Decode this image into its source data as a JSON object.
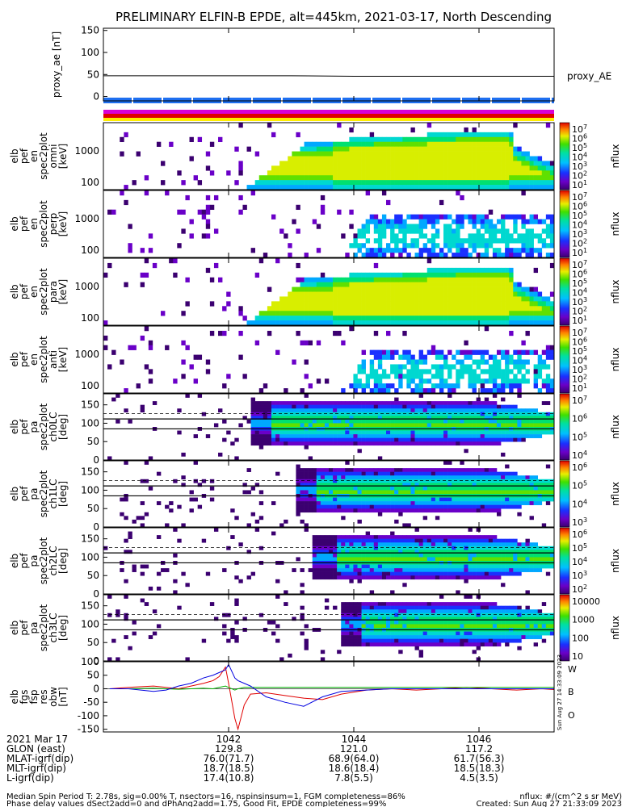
{
  "title": "PRELIMINARY ELFIN-B EPDE, alt=445km, 2021-03-17, North Descending",
  "colors": {
    "magenta": "#d800d8",
    "red": "#e00000",
    "yellow": "#ffee00",
    "blue_bar": "#1e6ff0",
    "fgs_x": "#e00000",
    "fgs_y": "#00b000",
    "fgs_z": "#0000e0"
  },
  "chart_data": [
    {
      "id": "proxy_ae",
      "type": "line",
      "ylabel": "proxy_ae [nT]",
      "ylim": [
        -10,
        155
      ],
      "yticks": [
        "150",
        "100",
        "50",
        "0"
      ],
      "legend": "proxy_AE",
      "x": [
        1040.0,
        1042.0,
        1043.0,
        1044.0,
        1045.0,
        1046.0,
        1047.2
      ],
      "values": [
        47,
        47,
        47,
        46,
        46,
        46,
        46
      ]
    },
    {
      "id": "spec_en_all",
      "type": "heatmap",
      "ylabel": [
        "elb",
        "pef",
        "en",
        "spec2plot",
        "omni",
        "[keV]"
      ],
      "yticks": [
        "1000",
        "100"
      ],
      "zlabel": "nflux",
      "cbar_ticks": [
        "10^7",
        "10^6",
        "10^5",
        "10^4",
        "10^3",
        "10^2",
        "10^1"
      ]
    },
    {
      "id": "spec_en_perp",
      "type": "heatmap",
      "ylabel": [
        "elb",
        "pef",
        "en",
        "spec2plot",
        "perp",
        "[keV]"
      ],
      "yticks": [
        "1000",
        "100"
      ],
      "zlabel": "nflux",
      "cbar_ticks": [
        "10^7",
        "10^6",
        "10^5",
        "10^4",
        "10^3",
        "10^2",
        "10^1"
      ]
    },
    {
      "id": "spec_en_para",
      "type": "heatmap",
      "ylabel": [
        "elb",
        "pef",
        "en",
        "spec2plot",
        "para",
        "[keV]"
      ],
      "yticks": [
        "1000",
        "100"
      ],
      "zlabel": "nflux",
      "cbar_ticks": [
        "10^7",
        "10^6",
        "10^5",
        "10^4",
        "10^3",
        "10^2",
        "10^1"
      ]
    },
    {
      "id": "spec_en_anti",
      "type": "heatmap",
      "ylabel": [
        "elb",
        "pef",
        "en",
        "spec2plot",
        "anti",
        "[keV]"
      ],
      "yticks": [
        "1000",
        "100"
      ],
      "zlabel": "nflux",
      "cbar_ticks": [
        "10^7",
        "10^6",
        "10^5",
        "10^4",
        "10^3",
        "10^2",
        "10^1"
      ]
    },
    {
      "id": "pa_ch0",
      "type": "heatmap",
      "ylabel": [
        "elb",
        "pef",
        "pa",
        "spec2plot",
        "ch0LC",
        "[deg]"
      ],
      "yticks": [
        "150",
        "100",
        "50",
        "0"
      ],
      "zlabel": "nflux",
      "cbar_ticks": [
        "10^7",
        "10^6",
        "10^5",
        "10^4"
      ]
    },
    {
      "id": "pa_ch1",
      "type": "heatmap",
      "ylabel": [
        "elb",
        "pef",
        "pa",
        "spec2plot",
        "ch1LC",
        "[deg]"
      ],
      "yticks": [
        "150",
        "100",
        "50",
        "0"
      ],
      "zlabel": "nflux",
      "cbar_ticks": [
        "10^6",
        "10^5",
        "10^4",
        "10^3"
      ]
    },
    {
      "id": "pa_ch2",
      "type": "heatmap",
      "ylabel": [
        "elb",
        "pef",
        "pa",
        "spec2plot",
        "ch2LC",
        "[deg]"
      ],
      "yticks": [
        "150",
        "100",
        "50",
        "0"
      ],
      "zlabel": "nflux",
      "cbar_ticks": [
        "10^6",
        "10^5",
        "10^4",
        "10^3",
        "10^2"
      ]
    },
    {
      "id": "pa_ch3",
      "type": "heatmap",
      "ylabel": [
        "elb",
        "pef",
        "pa",
        "spec2plot",
        "ch3LC",
        "[deg]"
      ],
      "yticks": [
        "150",
        "100",
        "50",
        "0"
      ],
      "zlabel": "nflux",
      "cbar_ticks": [
        "10000",
        "1000",
        "100",
        "10"
      ]
    },
    {
      "id": "fgs",
      "type": "line",
      "ylabel": [
        "elb",
        "fgs",
        "fsp",
        "res",
        "obw",
        "[nT]"
      ],
      "ylim": [
        -160,
        100
      ],
      "yticks": [
        "100",
        "50",
        "0",
        "-50",
        "-100",
        "-150"
      ],
      "legend": [
        "W",
        "B",
        "O"
      ],
      "x": [
        1040.1,
        1040.4,
        1040.8,
        1041.0,
        1041.2,
        1041.4,
        1041.6,
        1041.75,
        1041.85,
        1041.95,
        1042.0,
        1042.1,
        1042.15,
        1042.25,
        1042.35,
        1042.6,
        1042.9,
        1043.2,
        1043.5,
        1043.8,
        1044.2,
        1044.6,
        1045.0,
        1045.4,
        1045.8,
        1046.2,
        1046.6,
        1047.0,
        1047.2
      ],
      "series": [
        {
          "name": "W",
          "values": [
            0,
            5,
            10,
            5,
            0,
            10,
            20,
            30,
            45,
            80,
            20,
            -110,
            -150,
            -60,
            -20,
            -15,
            -25,
            -35,
            -40,
            -20,
            -5,
            0,
            -5,
            0,
            5,
            0,
            -5,
            0,
            -3
          ]
        },
        {
          "name": "B",
          "values": [
            0,
            0,
            2,
            0,
            -2,
            0,
            2,
            0,
            5,
            10,
            5,
            -5,
            0,
            5,
            5,
            5,
            5,
            5,
            5,
            5,
            5,
            5,
            5,
            5,
            5,
            5,
            5,
            5,
            5
          ]
        },
        {
          "name": "O",
          "values": [
            0,
            0,
            -10,
            -5,
            10,
            20,
            40,
            50,
            60,
            70,
            90,
            40,
            30,
            20,
            10,
            -30,
            -50,
            -65,
            -30,
            -10,
            -5,
            0,
            0,
            0,
            0,
            0,
            0,
            0,
            0
          ]
        }
      ]
    }
  ],
  "xaxis": {
    "ticks": [
      "1042",
      "1044",
      "1046"
    ],
    "xlim": [
      1040.0,
      1047.2
    ]
  },
  "ephemeris": {
    "rows": [
      {
        "label": "2021 Mar 17",
        "values": [
          "1042",
          "1044",
          "1046"
        ]
      },
      {
        "label": "GLON (east)",
        "values": [
          "129.8",
          "121.0",
          "117.2"
        ]
      },
      {
        "label": "MLAT-igrf(dip)",
        "values": [
          "76.0(71.7)",
          "68.9(64.0)",
          "61.7(56.3)"
        ]
      },
      {
        "label": "MLT-igrf(dip)",
        "values": [
          "18.7(18.5)",
          "18.6(18.4)",
          "18.5(18.3)"
        ]
      },
      {
        "label": "L-igrf(dip)",
        "values": [
          "17.4(10.8)",
          "7.8(5.5)",
          "4.5(3.5)"
        ]
      }
    ]
  },
  "footer": {
    "left1": "Median Spin Period T: 2.78s, sig=0.00% T, nsectors=16, nspinsinsum=1, FGM completeness=86%",
    "left2": "Phase delay values dSect2add=0 and dPhAng2add=1.75, Good Fit, EPDE completeness=99%",
    "right1": "nflux: #/(cm^2 s sr MeV)",
    "right2": "Created: Sun Aug 27 21:33:09 2023",
    "stamp": "Sun Aug 27 14:33:09 2023"
  }
}
